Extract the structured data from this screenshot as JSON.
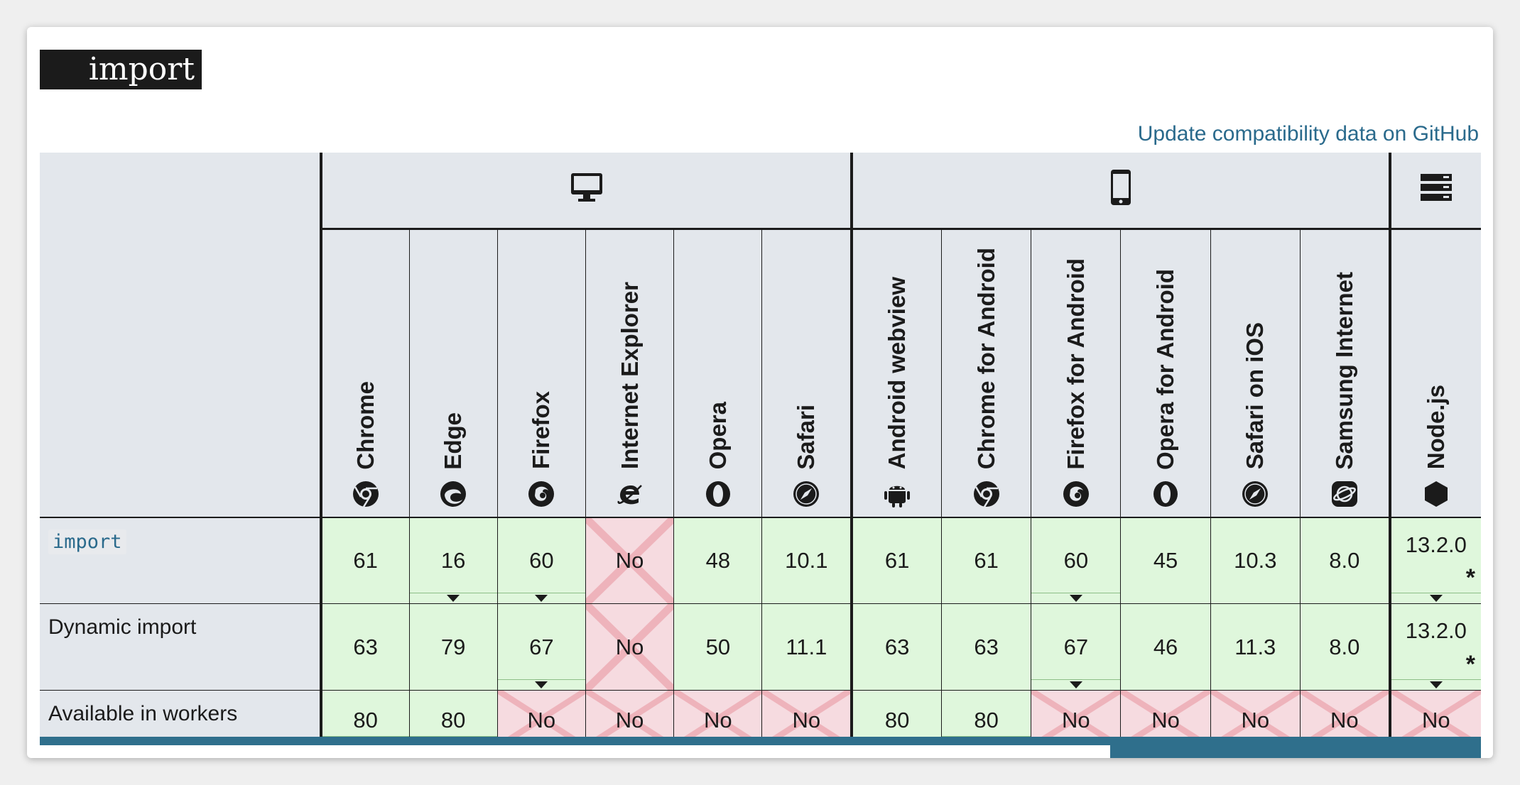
{
  "title": "import",
  "github_link": "Update compatibility data on GitHub",
  "groups": [
    {
      "name": "desktop",
      "icon": "desktop-icon"
    },
    {
      "name": "mobile",
      "icon": "mobile-icon"
    },
    {
      "name": "server",
      "icon": "server-icon"
    }
  ],
  "browsers": [
    {
      "label": "Chrome",
      "icon": "chrome-icon"
    },
    {
      "label": "Edge",
      "icon": "edge-icon"
    },
    {
      "label": "Firefox",
      "icon": "firefox-icon"
    },
    {
      "label": "Internet Explorer",
      "icon": "internet-explorer-icon"
    },
    {
      "label": "Opera",
      "icon": "opera-icon"
    },
    {
      "label": "Safari",
      "icon": "safari-icon"
    },
    {
      "label": "Android webview",
      "icon": "android-icon"
    },
    {
      "label": "Chrome for Android",
      "icon": "chrome-icon"
    },
    {
      "label": "Firefox for Android",
      "icon": "firefox-icon"
    },
    {
      "label": "Opera for Android",
      "icon": "opera-icon"
    },
    {
      "label": "Safari on iOS",
      "icon": "safari-icon"
    },
    {
      "label": "Samsung Internet",
      "icon": "samsung-internet-icon"
    },
    {
      "label": "Node.js",
      "icon": "nodejs-icon"
    }
  ],
  "rows": [
    {
      "feature": "import",
      "is_code": true,
      "cells": [
        {
          "text": "61",
          "support": "yes"
        },
        {
          "text": "16",
          "support": "yes",
          "notes": true
        },
        {
          "text": "60",
          "support": "yes",
          "notes": true
        },
        {
          "text": "No",
          "support": "no"
        },
        {
          "text": "48",
          "support": "yes"
        },
        {
          "text": "10.1",
          "support": "yes"
        },
        {
          "text": "61",
          "support": "yes"
        },
        {
          "text": "61",
          "support": "yes"
        },
        {
          "text": "60",
          "support": "yes",
          "notes": true
        },
        {
          "text": "45",
          "support": "yes"
        },
        {
          "text": "10.3",
          "support": "yes"
        },
        {
          "text": "8.0",
          "support": "yes"
        },
        {
          "text": "13.2.0",
          "support": "yes",
          "notes": true,
          "star": "*"
        }
      ]
    },
    {
      "feature": "Dynamic import",
      "is_code": false,
      "cells": [
        {
          "text": "63",
          "support": "yes"
        },
        {
          "text": "79",
          "support": "yes"
        },
        {
          "text": "67",
          "support": "yes",
          "notes": true
        },
        {
          "text": "No",
          "support": "no"
        },
        {
          "text": "50",
          "support": "yes"
        },
        {
          "text": "11.1",
          "support": "yes"
        },
        {
          "text": "63",
          "support": "yes"
        },
        {
          "text": "63",
          "support": "yes"
        },
        {
          "text": "67",
          "support": "yes",
          "notes": true
        },
        {
          "text": "46",
          "support": "yes"
        },
        {
          "text": "11.3",
          "support": "yes"
        },
        {
          "text": "8.0",
          "support": "yes"
        },
        {
          "text": "13.2.0",
          "support": "yes",
          "notes": true,
          "star": "*"
        }
      ]
    },
    {
      "feature": "Available in workers",
      "is_code": false,
      "cells": [
        {
          "text": "80",
          "support": "yes",
          "notes": true
        },
        {
          "text": "80",
          "support": "yes",
          "notes": true
        },
        {
          "text": "No",
          "support": "no"
        },
        {
          "text": "No",
          "support": "no"
        },
        {
          "text": "No",
          "support": "no"
        },
        {
          "text": "No",
          "support": "no"
        },
        {
          "text": "80",
          "support": "yes"
        },
        {
          "text": "80",
          "support": "yes",
          "notes": true
        },
        {
          "text": "No",
          "support": "no"
        },
        {
          "text": "No",
          "support": "no"
        },
        {
          "text": "No",
          "support": "no"
        },
        {
          "text": "No",
          "support": "no"
        },
        {
          "text": "No",
          "support": "no"
        }
      ]
    }
  ],
  "colors": {
    "supported": "#dff7dc",
    "unsupported": "#f6dbe0",
    "header_bg": "#e3e7ec",
    "link": "#2a6a8c"
  }
}
